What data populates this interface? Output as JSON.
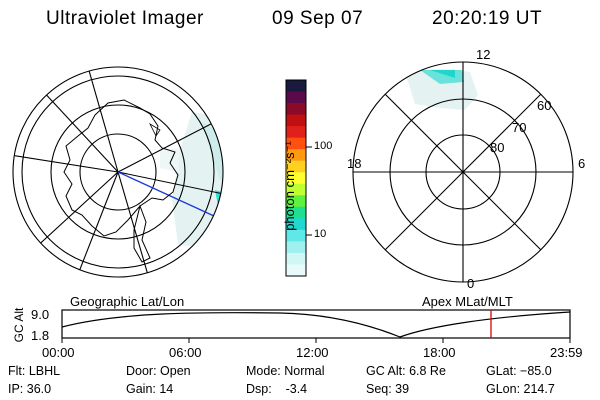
{
  "header": {
    "title": "Ultraviolet Imager",
    "date": "09 Sep 07",
    "time": "20:20:19 UT"
  },
  "geo_panel": {
    "label": "Geographic Lat/Lon"
  },
  "mag_panel": {
    "label": "Apex MLat/MLT",
    "mlt_labels": {
      "top": "12",
      "bottom": "0",
      "left": "18",
      "right": "6"
    },
    "lat_labels": [
      "60",
      "70",
      "80"
    ]
  },
  "colorbar": {
    "unit_label": "photon cm⁻²s⁻¹",
    "ticks": [
      "100",
      "10"
    ],
    "colors": [
      "#1a1a40",
      "#5a0a4a",
      "#8b0a2a",
      "#c01010",
      "#e0201a",
      "#ff5010",
      "#ff9a10",
      "#ffd020",
      "#ffff30",
      "#c0ff30",
      "#60f040",
      "#20e090",
      "#20d8d0",
      "#60e8e8",
      "#a0f0f0",
      "#d0f6f6",
      "#e8fafa"
    ]
  },
  "timeline": {
    "axis_title": "GC Alt",
    "y_max": "9.0",
    "y_min": "1.8",
    "ticks": [
      "00:00",
      "06:00",
      "12:00",
      "18:00",
      "23:59"
    ],
    "marker_color": "#e00000"
  },
  "info": {
    "col1": [
      "Flt: LBHL",
      "IP: 36.0"
    ],
    "col2": [
      "Door: Open",
      "Gain: 14"
    ],
    "col3": [
      "Mode: Normal",
      "Dsp:    -3.4"
    ],
    "col4": [
      "GC Alt: 6.8 Re",
      "Seq: 39"
    ],
    "col5": [
      "GLat: −85.0",
      "GLon: 214.7"
    ]
  }
}
